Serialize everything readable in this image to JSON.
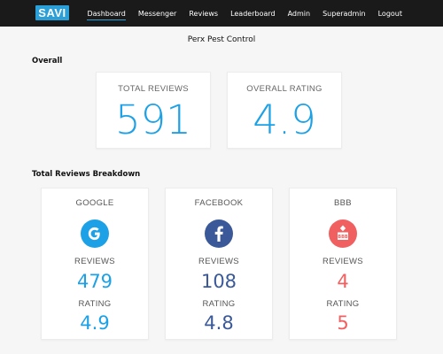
{
  "nav": {
    "logo": "SAVI",
    "links": [
      {
        "label": "Dashboard",
        "active": true
      },
      {
        "label": "Messenger"
      },
      {
        "label": "Reviews"
      },
      {
        "label": "Leaderboard"
      },
      {
        "label": "Admin"
      },
      {
        "label": "Superadmin"
      },
      {
        "label": "Logout"
      }
    ]
  },
  "page_title": "Perx Pest Control",
  "overall": {
    "section_title": "Overall",
    "total_reviews": {
      "label": "TOTAL REVIEWS",
      "value": "591"
    },
    "overall_rating": {
      "label": "OVERALL RATING",
      "value": "4.9"
    }
  },
  "breakdown": {
    "section_title": "Total Reviews Breakdown",
    "sources": [
      {
        "name": "GOOGLE",
        "icon": "google-icon",
        "reviews_label": "REVIEWS",
        "reviews": "479",
        "rating_label": "RATING",
        "rating": "4.9",
        "color": "#1da1e6"
      },
      {
        "name": "FACEBOOK",
        "icon": "facebook-icon",
        "reviews_label": "REVIEWS",
        "reviews": "108",
        "rating_label": "RATING",
        "rating": "4.8",
        "color": "#3b5998"
      },
      {
        "name": "BBB",
        "icon": "bbb-icon",
        "icon_text": "BBB",
        "reviews_label": "REVIEWS",
        "reviews": "4",
        "rating_label": "RATING",
        "rating": "5",
        "color": "#f06060"
      }
    ]
  },
  "colors": {
    "accent": "#1da1e6",
    "navbar": "#1a1a1a",
    "facebook": "#3b5998",
    "bbb": "#f06060"
  }
}
